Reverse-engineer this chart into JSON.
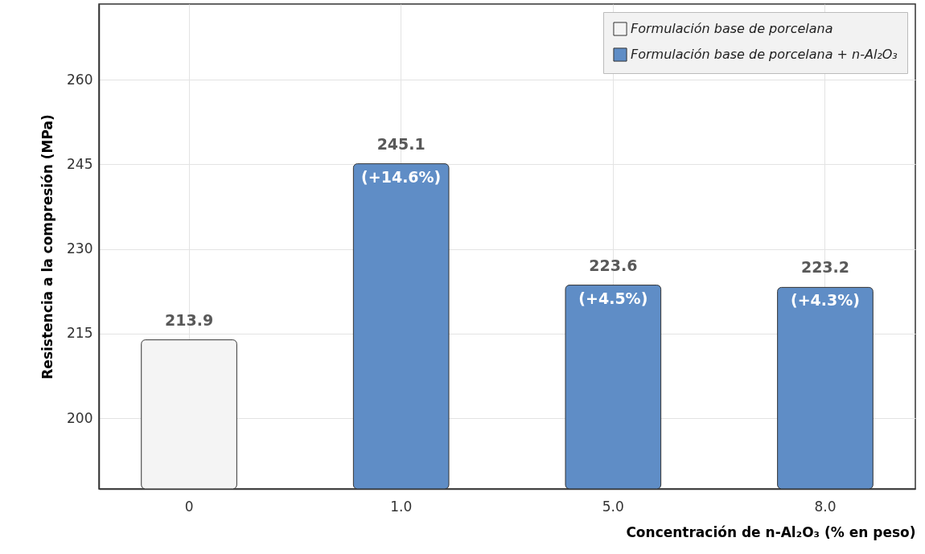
{
  "chart_data": {
    "type": "bar",
    "xlabel": "Concentración de n-Al₂O₃ (% en peso)",
    "ylabel": "Resistencia a la compresión (MPa)",
    "categories": [
      "0",
      "1.0",
      "5.0",
      "8.0"
    ],
    "series": [
      {
        "name": "Formulación base de porcelana",
        "color": "#f4f4f4",
        "values": [
          213.9,
          null,
          null,
          null
        ],
        "value_labels": [
          "213.9",
          null,
          null,
          null
        ]
      },
      {
        "name": "Formulación base de porcelana + n-Al₂O₃",
        "color": "#5f8dc6",
        "values": [
          null,
          245.1,
          223.6,
          223.2
        ],
        "value_labels": [
          null,
          "245.1",
          "223.6",
          "223.2"
        ]
      }
    ],
    "ylim": [
      187.5,
      273.4
    ],
    "yticks": [
      200,
      215,
      230,
      245,
      260
    ],
    "grid": true,
    "legend": "top right",
    "annotations": [
      {
        "text": "(+14.6%)",
        "x": "1.0",
        "y": 245.1
      },
      {
        "text": "(+4.5%)",
        "x": "5.0",
        "y": 223.6
      },
      {
        "text": "(+4.3%)",
        "x": "8.0",
        "y": 223.2
      }
    ]
  }
}
